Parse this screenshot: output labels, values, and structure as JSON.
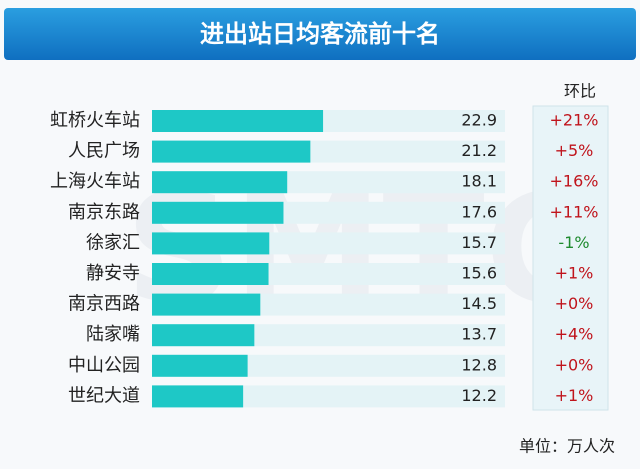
{
  "chart_data": {
    "type": "bar",
    "title": "进出站日均客流前十名",
    "categories": [
      "虹桥火车站",
      "人民广场",
      "上海火车站",
      "南京东路",
      "徐家汇",
      "静安寺",
      "南京西路",
      "陆家嘴",
      "中山公园",
      "世纪大道"
    ],
    "values": [
      22.9,
      21.2,
      18.1,
      17.6,
      15.7,
      15.6,
      14.5,
      13.7,
      12.8,
      12.2
    ],
    "color": "#1ec8c6",
    "change": {
      "name": "环比",
      "values": [
        21,
        5,
        16,
        11,
        -1,
        1,
        0,
        4,
        0,
        1
      ],
      "value_labels": [
        "+21%",
        "+5%",
        "+16%",
        "+11%",
        "-1%",
        "+1%",
        "+0%",
        "+4%",
        "+0%",
        "+1%"
      ],
      "colors": {
        "up": "#c0141c",
        "down": "#1e8a2e"
      }
    },
    "unit_note": "单位：万人次",
    "watermark": "SMTC"
  }
}
